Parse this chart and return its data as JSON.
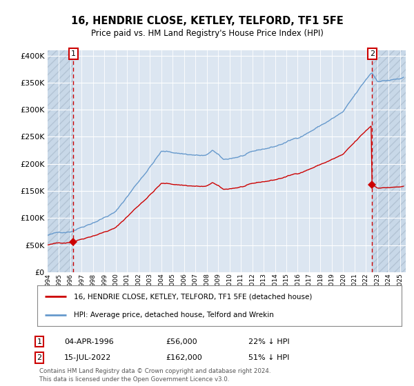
{
  "title": "16, HENDRIE CLOSE, KETLEY, TELFORD, TF1 5FE",
  "subtitle": "Price paid vs. HM Land Registry's House Price Index (HPI)",
  "sale1_date": "04-APR-1996",
  "sale1_price": 56000,
  "sale1_hpi_pct": "22% ↓ HPI",
  "sale1_year": 1996.27,
  "sale2_date": "15-JUL-2022",
  "sale2_price": 162000,
  "sale2_hpi_pct": "51% ↓ HPI",
  "sale2_year": 2022.54,
  "legend_line1": "16, HENDRIE CLOSE, KETLEY, TELFORD, TF1 5FE (detached house)",
  "legend_line2": "HPI: Average price, detached house, Telford and Wrekin",
  "footer": "Contains HM Land Registry data © Crown copyright and database right 2024.\nThis data is licensed under the Open Government Licence v3.0.",
  "red_color": "#cc0000",
  "blue_color": "#6699cc",
  "bg_color": "#dce6f1",
  "ylim": [
    0,
    410000
  ],
  "xlim_start": 1994.0,
  "xlim_end": 2025.5
}
